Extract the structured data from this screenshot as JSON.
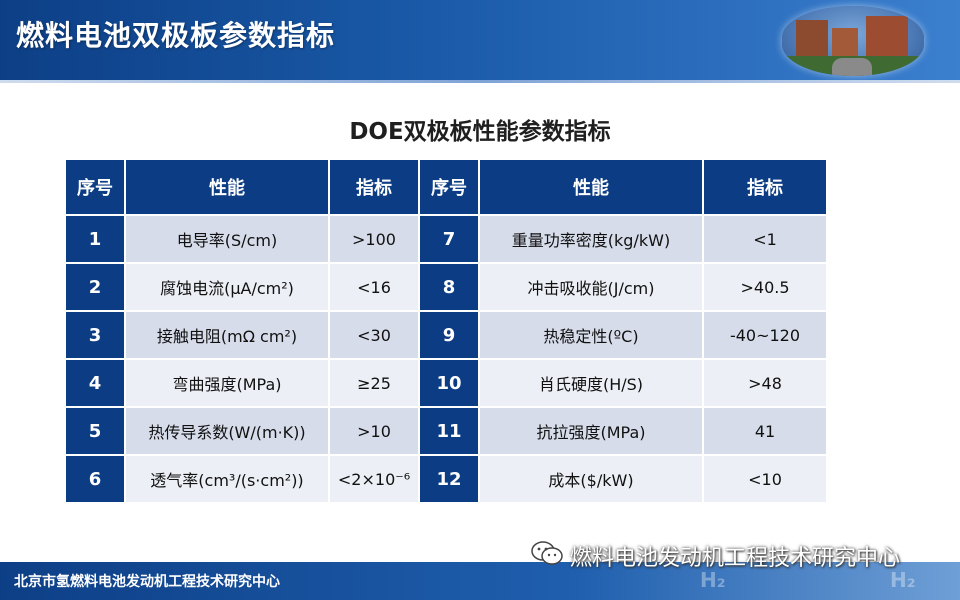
{
  "header": {
    "title": "燃料电池双极板参数指标"
  },
  "section": {
    "title": "DOE双极板性能参数指标"
  },
  "table": {
    "headers": [
      "序号",
      "性能",
      "指标",
      "序号",
      "性能",
      "指标"
    ],
    "rows": [
      {
        "idx_left": "1",
        "prop_left": "电导率(S/cm)",
        "val_left": ">100",
        "idx_right": "7",
        "prop_right": "重量功率密度(kg/kW)",
        "val_right": "<1"
      },
      {
        "idx_left": "2",
        "prop_left": "腐蚀电流(μA/cm²)",
        "val_left": "<16",
        "idx_right": "8",
        "prop_right": "冲击吸收能(J/cm)",
        "val_right": ">40.5"
      },
      {
        "idx_left": "3",
        "prop_left": "接触电阻(mΩ cm²)",
        "val_left": "<30",
        "idx_right": "9",
        "prop_right": "热稳定性(ºC)",
        "val_right": "-40~120"
      },
      {
        "idx_left": "4",
        "prop_left": "弯曲强度(MPa)",
        "val_left": "≥25",
        "idx_right": "10",
        "prop_right": "肖氏硬度(H/S)",
        "val_right": ">48"
      },
      {
        "idx_left": "5",
        "prop_left": "热传导系数(W/(m·K))",
        "val_left": ">10",
        "idx_right": "11",
        "prop_right": "抗拉强度(MPa)",
        "val_right": "41"
      },
      {
        "idx_left": "6",
        "prop_left": "透气率(cm³/(s·cm²))",
        "val_left": "<2×10⁻⁶",
        "idx_right": "12",
        "prop_right": "成本($/kW)",
        "val_right": "<10"
      }
    ]
  },
  "watermark": {
    "text": "燃料电池发动机工程技术研究中心",
    "icon": "wechat-icon"
  },
  "footer": {
    "org": "北京市氢燃料电池发动机工程技术研究中心",
    "decor": "H₂"
  },
  "colors": {
    "header_blue": "#0c3d84",
    "cell_light": "#eceff5",
    "cell_mid": "#d6dcea"
  }
}
